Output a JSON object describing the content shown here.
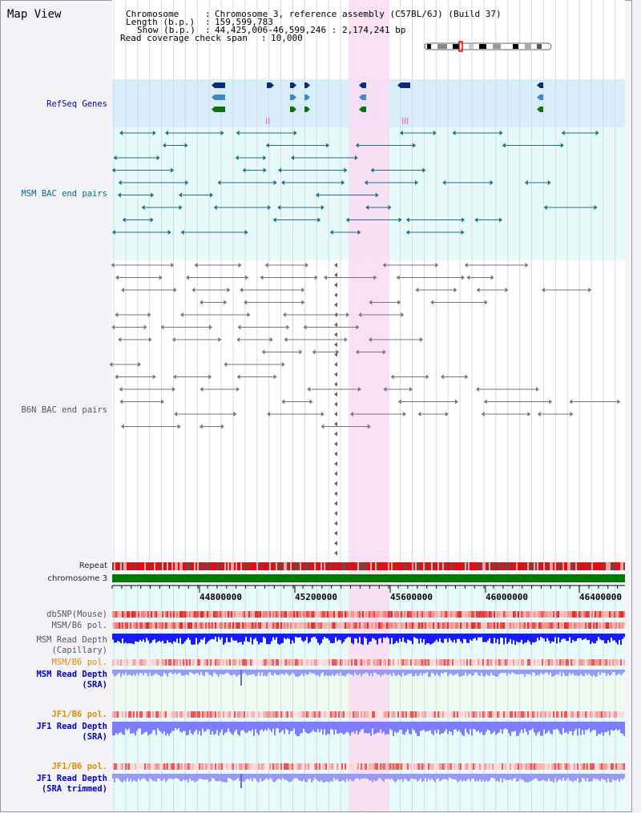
{
  "title": "Map View",
  "info": {
    "chromosome_label": "Chromosome",
    "chromosome_value": "Chromosome 3, reference assembly (C57BL/6J) (Build 37)",
    "length_label": "Length (b.p.)",
    "length_value": "159,599,783",
    "show_label": "Show (b.p.)",
    "show_value": "44,425,006-46,599,246 : 2,174,241 bp",
    "coverage_label": "Read coverage check span",
    "coverage_value": "10,000"
  },
  "tracks": {
    "refseq": "RefSeq Genes",
    "msm_bac": "MSM BAC end pairs",
    "b6n_bac": "B6N BAC end pairs",
    "repeat": "Repeat",
    "chromosome": "chromosome 3",
    "dbsnp": "dbSNP(Mouse)",
    "msm_b6_pol_1": "MSM/B6 pol.",
    "msm_read_depth_cap_1": "MSM Read Depth",
    "msm_read_depth_cap_2": "(Capillary)",
    "msm_b6_pol_2": "MSM/B6 pol.",
    "msm_read_depth_sra_1": "MSM Read Depth",
    "msm_read_depth_sra_2": "(SRA)",
    "jf1_b6_pol_1": "JF1/B6 pol.",
    "jf1_read_depth_sra_1": "JF1 Read Depth",
    "jf1_read_depth_sra_2": "(SRA)",
    "jf1_b6_pol_2": "JF1/B6 pol.",
    "jf1_read_depth_trim_1": "JF1 Read Depth",
    "jf1_read_depth_trim_2": "(SRA trimmed)"
  },
  "axis": {
    "ticks": [
      "44800000",
      "45200000",
      "45600000",
      "46000000",
      "46400000"
    ]
  },
  "colors": {
    "refseq_bg": "#d8eefa",
    "msm_bg": "#e6fafa",
    "highlight": "#fadcf2",
    "repeat_red": "#e01010",
    "chrom_green": "#007a00",
    "depth_blue": "#1a1aff",
    "depth_lavender": "#7d7dff"
  }
}
